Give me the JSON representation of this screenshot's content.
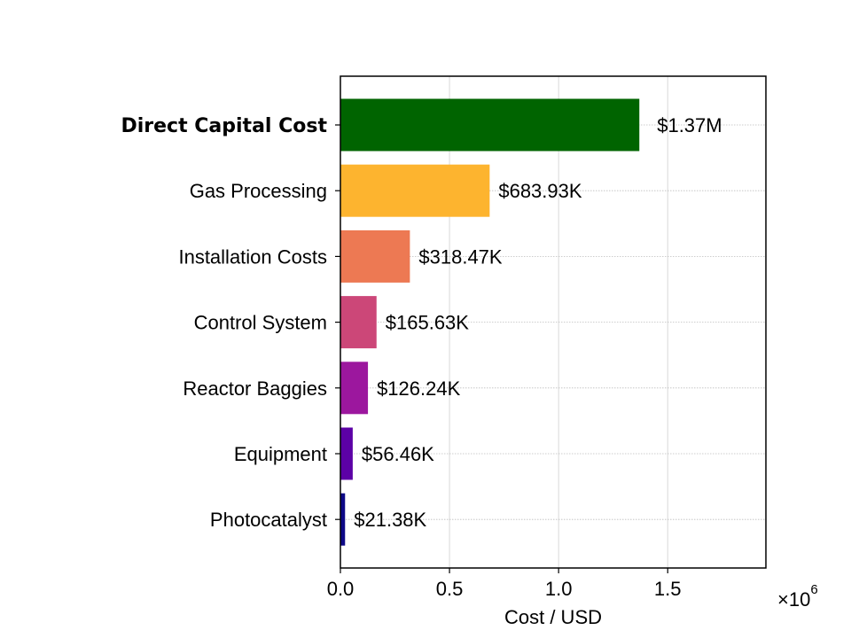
{
  "chart_data": {
    "type": "bar",
    "orientation": "horizontal",
    "categories": [
      "Direct Capital Cost",
      "Gas Processing",
      "Installation Costs",
      "Control System",
      "Reactor Baggies",
      "Equipment",
      "Photocatalyst"
    ],
    "values": [
      1370000,
      683930,
      318470,
      165630,
      126240,
      56460,
      21380
    ],
    "data_labels": [
      "$1.37M",
      "$683.93K",
      "$318.47K",
      "$165.63K",
      "$126.24K",
      "$56.46K",
      "$21.38K"
    ],
    "colors": [
      "#006400",
      "#fdb42f",
      "#ed7953",
      "#cc4778",
      "#9c179e",
      "#5c01a6",
      "#0d0887"
    ],
    "bold_categories": [
      "Direct Capital Cost"
    ],
    "xlabel": "Cost / USD",
    "x_exponent_label": "×10",
    "x_exponent_power": "6",
    "xlim": [
      0,
      1950000
    ],
    "x_ticks": [
      0,
      500000,
      1000000,
      1500000
    ],
    "x_tick_labels": [
      "0.0",
      "0.5",
      "1.0",
      "1.5"
    ],
    "grid": true
  }
}
